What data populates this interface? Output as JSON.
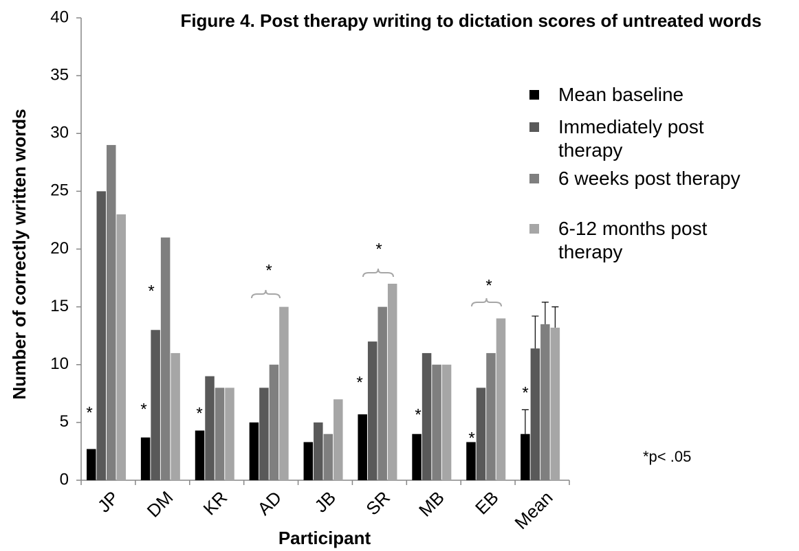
{
  "chart_data": {
    "type": "bar",
    "title": "Figure 4. Post therapy writing to dictation scores of untreated words",
    "x_label": "Participant",
    "y_label": "Number of correctly written words",
    "categories": [
      "JP",
      "DM",
      "KR",
      "AD",
      "JB",
      "SR",
      "MB",
      "EB",
      "Mean"
    ],
    "series": [
      {
        "name": "Mean baseline",
        "color": "#000000",
        "values": [
          2.7,
          3.7,
          4.3,
          5,
          3.3,
          5.7,
          4,
          3.3,
          4
        ],
        "errors": [
          null,
          null,
          null,
          null,
          null,
          null,
          null,
          null,
          2.1
        ]
      },
      {
        "name": "Immediately post therapy",
        "color": "#595959",
        "values": [
          25,
          13,
          9,
          8,
          5,
          12,
          11,
          8,
          11.4
        ],
        "errors": [
          null,
          null,
          null,
          null,
          null,
          null,
          null,
          null,
          2.8
        ]
      },
      {
        "name": "6 weeks post therapy",
        "color": "#7f7f7f",
        "values": [
          29,
          21,
          8,
          10,
          4,
          15,
          10,
          11,
          13.5
        ],
        "errors": [
          null,
          null,
          null,
          null,
          null,
          null,
          null,
          null,
          1.9
        ]
      },
      {
        "name": "6-12 months post therapy",
        "color": "#a6a6a6",
        "values": [
          23,
          11,
          8,
          15,
          7,
          17,
          10,
          14,
          13.2
        ],
        "errors": [
          null,
          null,
          null,
          null,
          null,
          null,
          null,
          null,
          1.8
        ]
      }
    ],
    "ylim": [
      0,
      40
    ],
    "yticks": [
      0,
      5,
      10,
      15,
      20,
      25,
      30,
      35,
      40
    ],
    "annotations": [
      "*",
      "*",
      "*",
      "*",
      "*",
      "*",
      "*",
      "*",
      "*",
      "*",
      "*"
    ],
    "note": "*p< .05"
  }
}
